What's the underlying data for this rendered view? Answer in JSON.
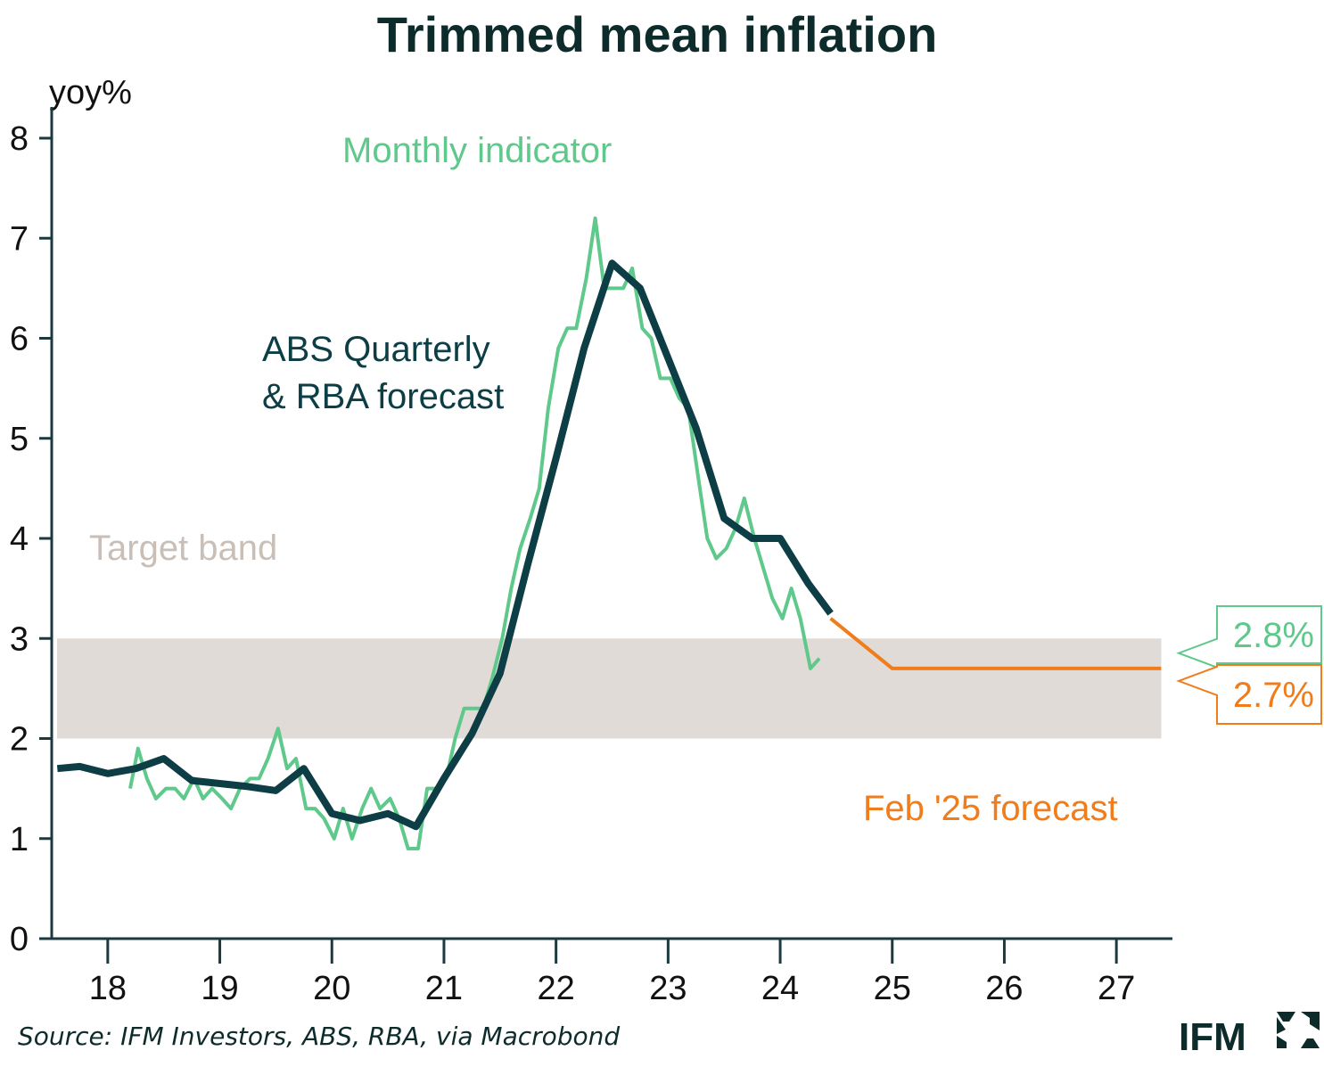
{
  "chart_data": {
    "type": "line",
    "title": "Trimmed mean inflation",
    "ylabel": "yoy%",
    "xlabel": "",
    "ylim": [
      0,
      8
    ],
    "yticks": [
      "0",
      "1",
      "2",
      "3",
      "4",
      "5",
      "6",
      "7",
      "8"
    ],
    "xlim": [
      2017.5,
      2027.5
    ],
    "xtick_labels": [
      "18",
      "19",
      "20",
      "21",
      "22",
      "23",
      "24",
      "25",
      "26",
      "27"
    ],
    "target_band": {
      "label": "Target band",
      "low": 2,
      "high": 3,
      "color": "#e0dbd7",
      "label_color": "#c9bfb7"
    },
    "series": [
      {
        "name": "ABS Quarterly & RBA forecast",
        "color": "#0d3d45",
        "points": [
          [
            2017.55,
            1.7
          ],
          [
            2017.75,
            1.72
          ],
          [
            2018.0,
            1.65
          ],
          [
            2018.25,
            1.7
          ],
          [
            2018.5,
            1.8
          ],
          [
            2018.75,
            1.58
          ],
          [
            2019.0,
            1.55
          ],
          [
            2019.25,
            1.52
          ],
          [
            2019.5,
            1.48
          ],
          [
            2019.75,
            1.7
          ],
          [
            2020.0,
            1.25
          ],
          [
            2020.25,
            1.18
          ],
          [
            2020.5,
            1.25
          ],
          [
            2020.75,
            1.12
          ],
          [
            2021.0,
            1.6
          ],
          [
            2021.25,
            2.05
          ],
          [
            2021.5,
            2.65
          ],
          [
            2021.75,
            3.75
          ],
          [
            2022.0,
            4.8
          ],
          [
            2022.25,
            5.9
          ],
          [
            2022.5,
            6.75
          ],
          [
            2022.75,
            6.5
          ],
          [
            2023.0,
            5.8
          ],
          [
            2023.25,
            5.1
          ],
          [
            2023.5,
            4.2
          ],
          [
            2023.75,
            4.0
          ],
          [
            2024.0,
            4.0
          ],
          [
            2024.25,
            3.55
          ],
          [
            2024.45,
            3.25
          ]
        ]
      },
      {
        "name": "Monthly indicator",
        "color": "#5ec98a",
        "points": [
          [
            2018.2,
            1.5
          ],
          [
            2018.27,
            1.9
          ],
          [
            2018.35,
            1.6
          ],
          [
            2018.43,
            1.4
          ],
          [
            2018.52,
            1.5
          ],
          [
            2018.6,
            1.5
          ],
          [
            2018.68,
            1.4
          ],
          [
            2018.77,
            1.6
          ],
          [
            2018.85,
            1.4
          ],
          [
            2018.93,
            1.5
          ],
          [
            2019.02,
            1.4
          ],
          [
            2019.1,
            1.3
          ],
          [
            2019.18,
            1.5
          ],
          [
            2019.27,
            1.6
          ],
          [
            2019.35,
            1.6
          ],
          [
            2019.43,
            1.8
          ],
          [
            2019.52,
            2.1
          ],
          [
            2019.6,
            1.7
          ],
          [
            2019.68,
            1.8
          ],
          [
            2019.77,
            1.3
          ],
          [
            2019.85,
            1.3
          ],
          [
            2019.93,
            1.2
          ],
          [
            2020.02,
            1.0
          ],
          [
            2020.1,
            1.3
          ],
          [
            2020.18,
            1.0
          ],
          [
            2020.27,
            1.3
          ],
          [
            2020.35,
            1.5
          ],
          [
            2020.43,
            1.3
          ],
          [
            2020.52,
            1.4
          ],
          [
            2020.6,
            1.2
          ],
          [
            2020.68,
            0.9
          ],
          [
            2020.77,
            0.9
          ],
          [
            2020.85,
            1.5
          ],
          [
            2020.93,
            1.5
          ],
          [
            2021.02,
            1.6
          ],
          [
            2021.1,
            2.0
          ],
          [
            2021.18,
            2.3
          ],
          [
            2021.27,
            2.3
          ],
          [
            2021.35,
            2.3
          ],
          [
            2021.43,
            2.6
          ],
          [
            2021.52,
            3.0
          ],
          [
            2021.6,
            3.5
          ],
          [
            2021.68,
            3.9
          ],
          [
            2021.77,
            4.2
          ],
          [
            2021.85,
            4.5
          ],
          [
            2021.93,
            5.3
          ],
          [
            2022.02,
            5.9
          ],
          [
            2022.1,
            6.1
          ],
          [
            2022.18,
            6.1
          ],
          [
            2022.27,
            6.6
          ],
          [
            2022.35,
            7.2
          ],
          [
            2022.43,
            6.5
          ],
          [
            2022.52,
            6.5
          ],
          [
            2022.6,
            6.5
          ],
          [
            2022.68,
            6.7
          ],
          [
            2022.77,
            6.1
          ],
          [
            2022.85,
            6.0
          ],
          [
            2022.93,
            5.6
          ],
          [
            2023.02,
            5.6
          ],
          [
            2023.1,
            5.4
          ],
          [
            2023.18,
            5.3
          ],
          [
            2023.27,
            4.6
          ],
          [
            2023.35,
            4.0
          ],
          [
            2023.43,
            3.8
          ],
          [
            2023.52,
            3.9
          ],
          [
            2023.6,
            4.1
          ],
          [
            2023.68,
            4.4
          ],
          [
            2023.77,
            4.0
          ],
          [
            2023.85,
            3.7
          ],
          [
            2023.93,
            3.4
          ],
          [
            2024.02,
            3.2
          ],
          [
            2024.1,
            3.5
          ],
          [
            2024.18,
            3.2
          ],
          [
            2024.27,
            2.7
          ],
          [
            2024.35,
            2.8
          ]
        ]
      },
      {
        "name": "Feb '25 forecast",
        "color": "#f07c1b",
        "points": [
          [
            2024.45,
            3.2
          ],
          [
            2025.0,
            2.7
          ],
          [
            2027.4,
            2.7
          ]
        ]
      }
    ],
    "annotations": [
      {
        "text": "Monthly indicator",
        "color": "#5ec98a"
      },
      {
        "text": "ABS Quarterly",
        "color": "#0d3d45"
      },
      {
        "text": "& RBA forecast",
        "color": "#0d3d45"
      },
      {
        "text": "Feb '25 forecast",
        "color": "#f07c1b"
      }
    ],
    "end_labels": [
      {
        "text": "2.8%",
        "value": 2.8,
        "color": "#5ec98a"
      },
      {
        "text": "2.7%",
        "value": 2.7,
        "color": "#f07c1b"
      }
    ]
  },
  "source": "Source: IFM Investors, ABS, RBA, via Macrobond",
  "logo": {
    "text": "IFM"
  }
}
